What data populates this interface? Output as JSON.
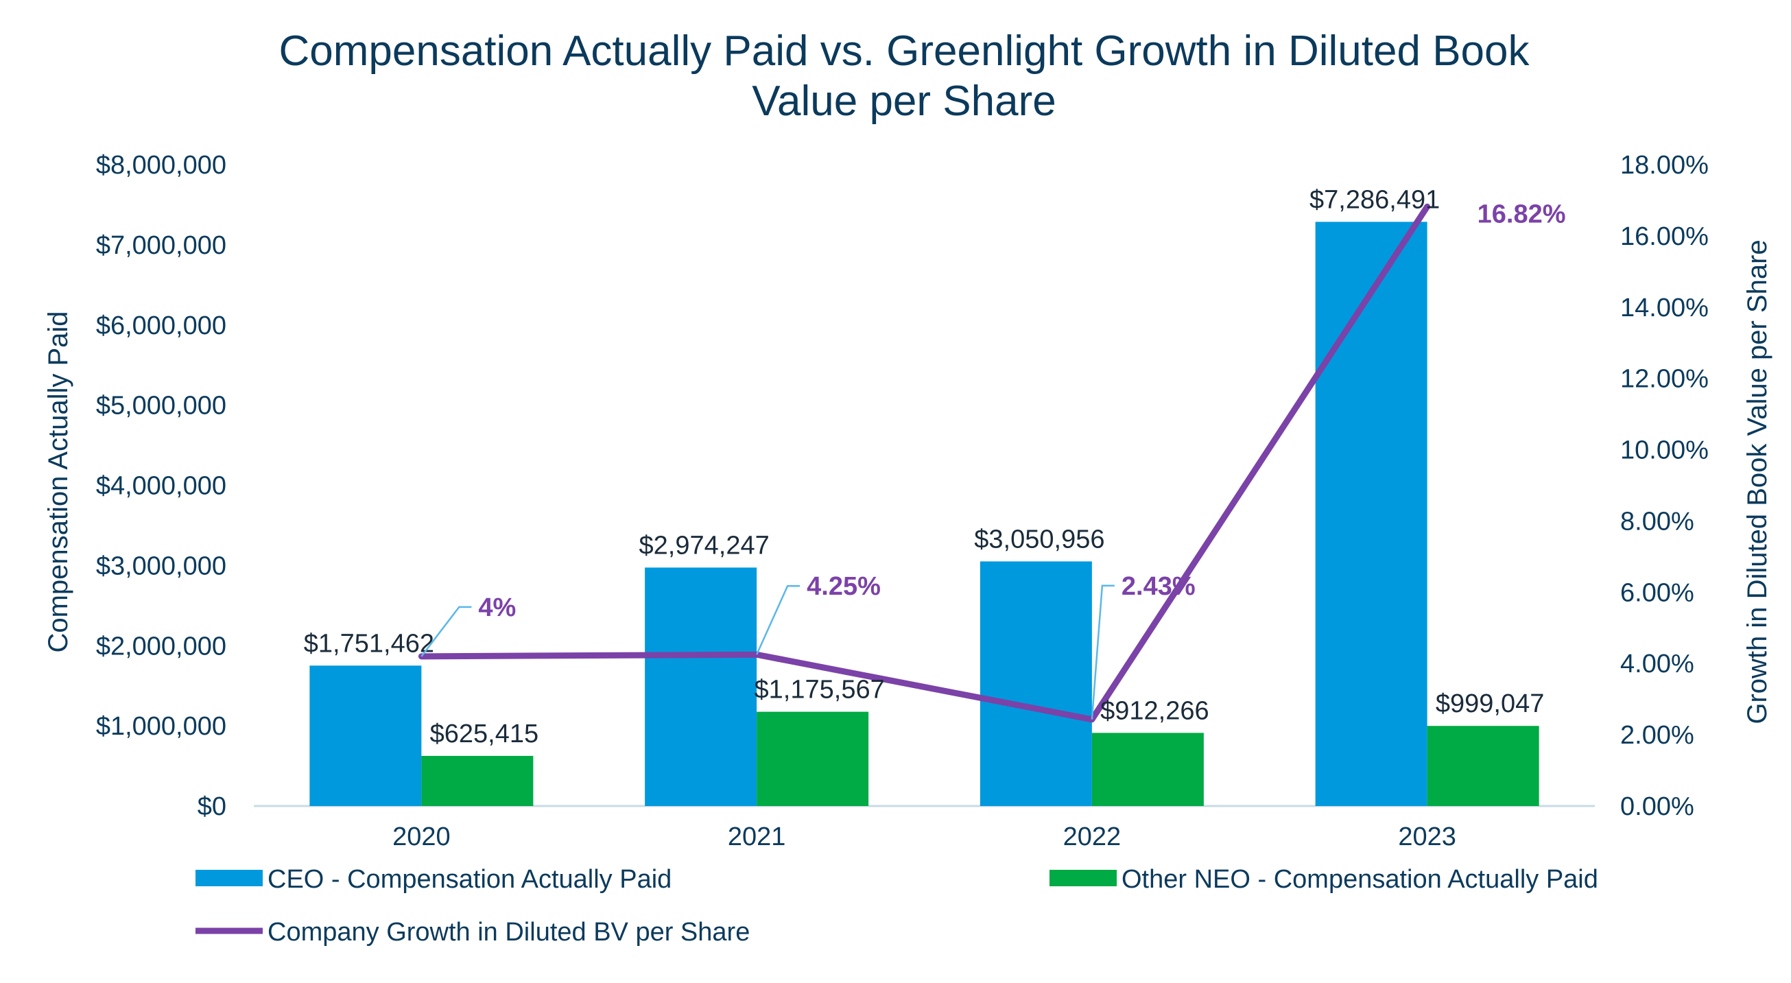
{
  "chart_data": {
    "type": "bar",
    "title_lines": [
      "Compensation Actually Paid vs. Greenlight Growth in Diluted Book",
      "Value per Share"
    ],
    "categories": [
      "2020",
      "2021",
      "2022",
      "2023"
    ],
    "series": [
      {
        "name": "CEO - Compensation Actually Paid",
        "kind": "bar",
        "axis": "left",
        "color": "#0099dd",
        "values": [
          1751462,
          2974247,
          3050956,
          7286491
        ],
        "labels": [
          "$1,751,462",
          "$2,974,247",
          "$3,050,956",
          "$7,286,491"
        ]
      },
      {
        "name": "Other NEO - Compensation Actually Paid",
        "kind": "bar",
        "axis": "left",
        "color": "#00aa44",
        "values": [
          625415,
          1175567,
          912266,
          999047
        ],
        "labels": [
          "$625,415",
          "$1,175,567",
          "$912,266",
          "$999,047"
        ]
      },
      {
        "name": "Company Growth in Diluted BV per Share",
        "kind": "line",
        "axis": "right",
        "color": "#7b42a8",
        "values": [
          4.2,
          4.25,
          2.43,
          16.82
        ],
        "labels": [
          "4%",
          "4.25%",
          "2.43%",
          "16.82%"
        ]
      }
    ],
    "ylabel": "Compensation Actually Paid",
    "y2label": "Growth in Diluted Book Value per Share",
    "ylim": [
      0,
      8000000
    ],
    "y2lim": [
      0,
      18
    ],
    "yticks": [
      "$0",
      "$1,000,000",
      "$2,000,000",
      "$3,000,000",
      "$4,000,000",
      "$5,000,000",
      "$6,000,000",
      "$7,000,000",
      "$8,000,000"
    ],
    "y2ticks": [
      "0.00%",
      "2.00%",
      "4.00%",
      "6.00%",
      "8.00%",
      "10.00%",
      "12.00%",
      "14.00%",
      "16.00%",
      "18.00%"
    ],
    "grid": false,
    "legend_position": "bottom"
  }
}
